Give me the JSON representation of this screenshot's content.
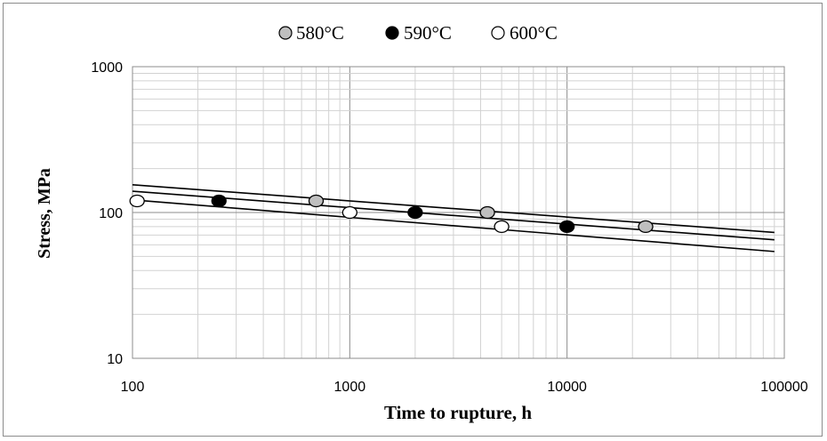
{
  "chart_data": {
    "type": "scatter",
    "x_scale": "log",
    "y_scale": "log",
    "xlabel": "Time to rupture, h",
    "ylabel": "Stress, MPa",
    "xlim": [
      100,
      100000
    ],
    "ylim": [
      10,
      1000
    ],
    "x_ticks": [
      "100",
      "1000",
      "10000",
      "100000"
    ],
    "y_ticks": [
      "10",
      "100",
      "1000"
    ],
    "grid": true,
    "legend_position": "top",
    "series": [
      {
        "name": "580°C",
        "marker": "gray-filled-circle",
        "color": "#bfbfbf",
        "points": [
          [
            700,
            120
          ],
          [
            4300,
            100
          ],
          [
            23000,
            80
          ]
        ]
      },
      {
        "name": "590°C",
        "marker": "black-filled-circle",
        "color": "#000000",
        "points": [
          [
            250,
            120
          ],
          [
            2000,
            100
          ],
          [
            10000,
            80
          ]
        ]
      },
      {
        "name": "600°C",
        "marker": "open-circle",
        "color": "#ffffff",
        "points": [
          [
            105,
            120
          ],
          [
            1000,
            100
          ],
          [
            5000,
            80
          ]
        ]
      }
    ],
    "trend_lines": [
      {
        "from": [
          100,
          155
        ],
        "to": [
          90000,
          73
        ]
      },
      {
        "from": [
          100,
          140
        ],
        "to": [
          90000,
          65
        ]
      },
      {
        "from": [
          100,
          122
        ],
        "to": [
          90000,
          54
        ]
      }
    ]
  }
}
